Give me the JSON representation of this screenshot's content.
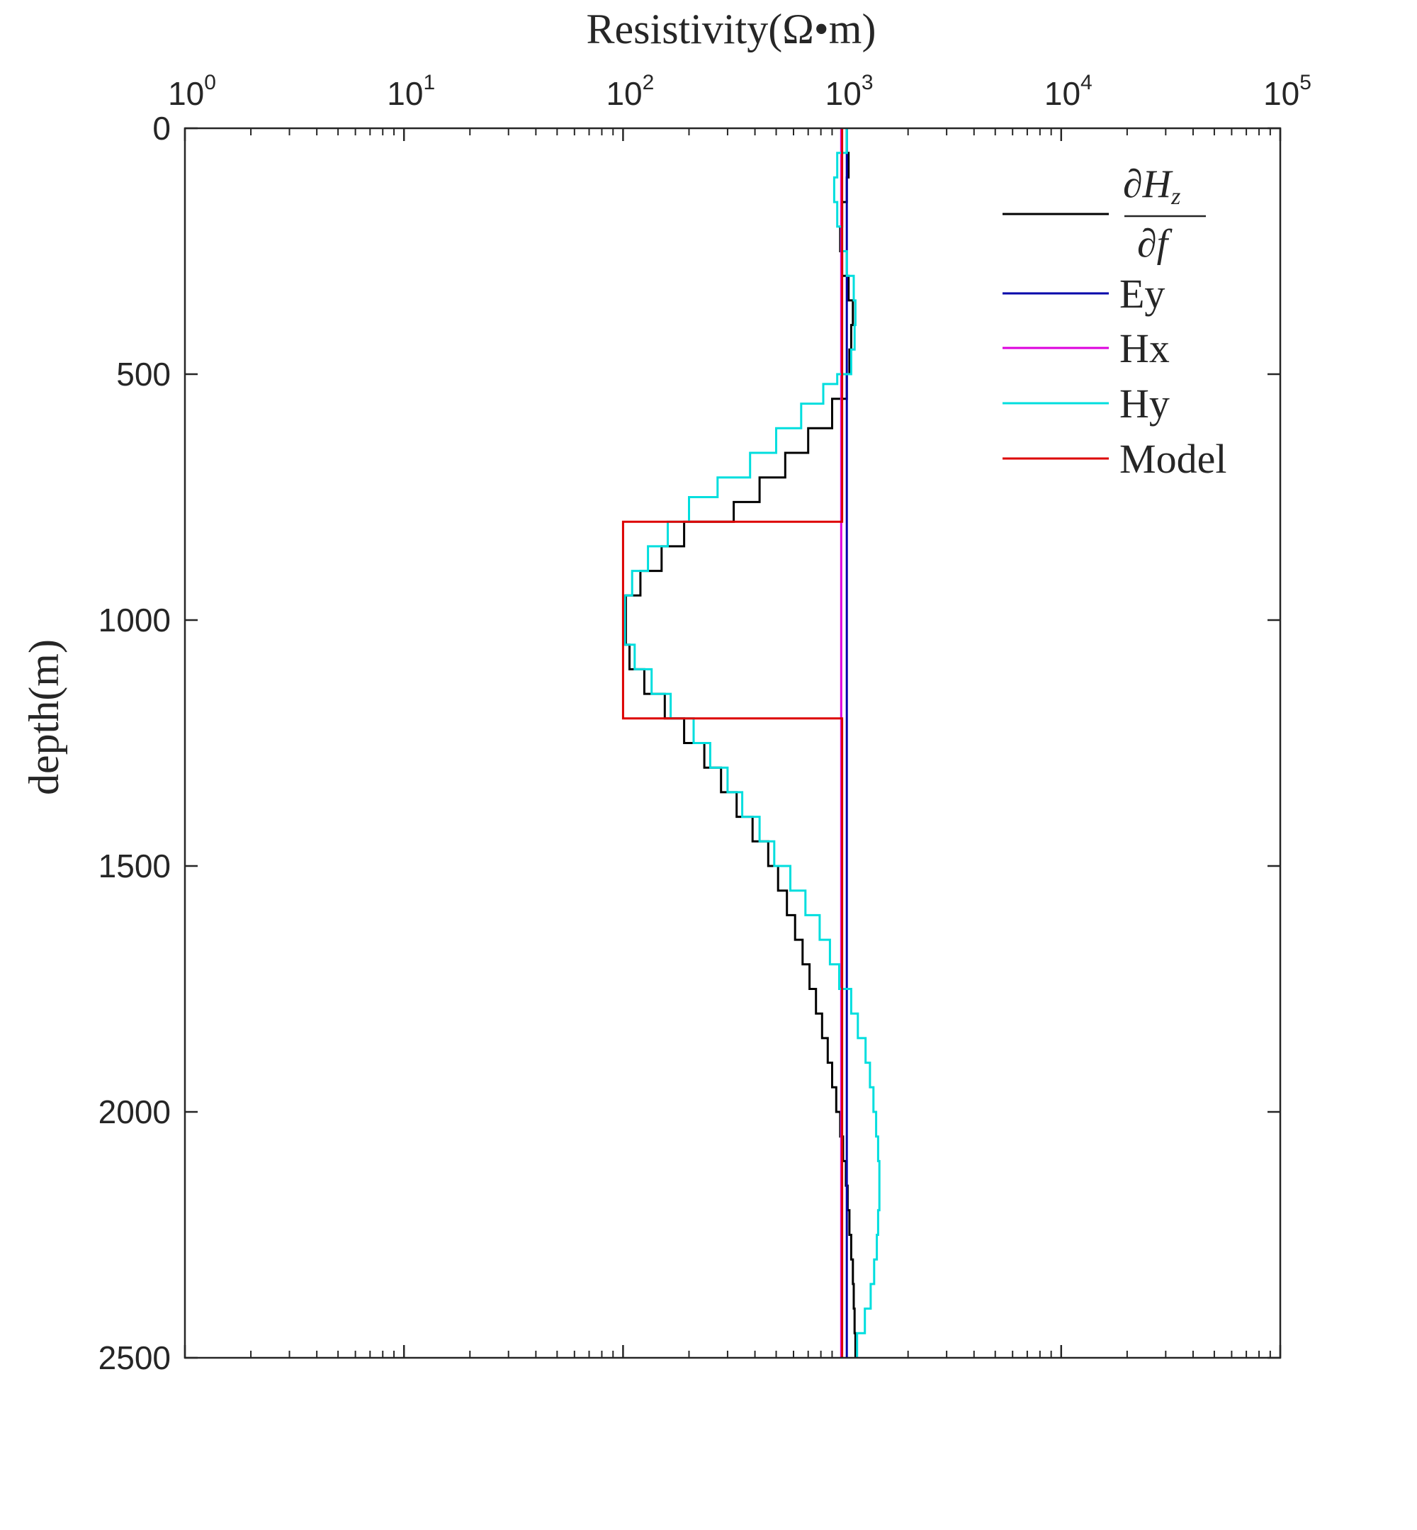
{
  "chart_data": {
    "type": "line",
    "xlabel": "Resistivity(Ω•m)",
    "ylabel": "depth(m)",
    "xscale": "log",
    "xlim": [
      1,
      100000
    ],
    "ylim": [
      0,
      2500
    ],
    "y_reversed": true,
    "x_axis_position": "top",
    "grid": false,
    "legend_position": "top-right",
    "x_ticks": [
      {
        "base": "10",
        "exp": "0",
        "value": 1
      },
      {
        "base": "10",
        "exp": "1",
        "value": 10
      },
      {
        "base": "10",
        "exp": "2",
        "value": 100
      },
      {
        "base": "10",
        "exp": "3",
        "value": 1000
      },
      {
        "base": "10",
        "exp": "4",
        "value": 10000
      },
      {
        "base": "10",
        "exp": "5",
        "value": 100000
      }
    ],
    "y_ticks": [
      "0",
      "500",
      "1000",
      "1500",
      "2000",
      "2500"
    ],
    "legend": {
      "dhz": {
        "numerator": "∂H",
        "numerator_sub": "z",
        "denominator": "∂f"
      },
      "ey": "Ey",
      "hx": "Hx",
      "hy": "Hy",
      "model": "Model"
    },
    "series": [
      {
        "key": "dhz",
        "color": "#000000",
        "points": [
          [
            1050,
            0
          ],
          [
            1050,
            50
          ],
          [
            1070,
            50
          ],
          [
            1070,
            100
          ],
          [
            1050,
            100
          ],
          [
            1050,
            150
          ],
          [
            1000,
            150
          ],
          [
            1000,
            200
          ],
          [
            980,
            200
          ],
          [
            980,
            250
          ],
          [
            1000,
            250
          ],
          [
            1000,
            300
          ],
          [
            1070,
            300
          ],
          [
            1070,
            350
          ],
          [
            1120,
            350
          ],
          [
            1120,
            400
          ],
          [
            1100,
            400
          ],
          [
            1100,
            450
          ],
          [
            1080,
            450
          ],
          [
            1080,
            500
          ],
          [
            1050,
            500
          ],
          [
            1050,
            550
          ],
          [
            900,
            550
          ],
          [
            900,
            610
          ],
          [
            700,
            610
          ],
          [
            700,
            660
          ],
          [
            550,
            660
          ],
          [
            550,
            710
          ],
          [
            420,
            710
          ],
          [
            420,
            760
          ],
          [
            320,
            760
          ],
          [
            320,
            800
          ],
          [
            190,
            800
          ],
          [
            190,
            850
          ],
          [
            150,
            850
          ],
          [
            150,
            900
          ],
          [
            120,
            900
          ],
          [
            120,
            950
          ],
          [
            103,
            950
          ],
          [
            103,
            1050
          ],
          [
            107,
            1050
          ],
          [
            107,
            1100
          ],
          [
            125,
            1100
          ],
          [
            125,
            1150
          ],
          [
            155,
            1150
          ],
          [
            155,
            1200
          ],
          [
            190,
            1200
          ],
          [
            190,
            1250
          ],
          [
            235,
            1250
          ],
          [
            235,
            1300
          ],
          [
            280,
            1300
          ],
          [
            280,
            1350
          ],
          [
            330,
            1350
          ],
          [
            330,
            1400
          ],
          [
            390,
            1400
          ],
          [
            390,
            1450
          ],
          [
            460,
            1450
          ],
          [
            460,
            1500
          ],
          [
            510,
            1500
          ],
          [
            510,
            1550
          ],
          [
            560,
            1550
          ],
          [
            560,
            1600
          ],
          [
            610,
            1600
          ],
          [
            610,
            1650
          ],
          [
            660,
            1650
          ],
          [
            660,
            1700
          ],
          [
            710,
            1700
          ],
          [
            710,
            1750
          ],
          [
            760,
            1750
          ],
          [
            760,
            1800
          ],
          [
            810,
            1800
          ],
          [
            810,
            1850
          ],
          [
            860,
            1850
          ],
          [
            860,
            1900
          ],
          [
            900,
            1900
          ],
          [
            900,
            1950
          ],
          [
            940,
            1950
          ],
          [
            940,
            2000
          ],
          [
            980,
            2000
          ],
          [
            980,
            2050
          ],
          [
            1010,
            2050
          ],
          [
            1010,
            2100
          ],
          [
            1040,
            2100
          ],
          [
            1040,
            2150
          ],
          [
            1060,
            2150
          ],
          [
            1060,
            2200
          ],
          [
            1080,
            2200
          ],
          [
            1080,
            2250
          ],
          [
            1100,
            2250
          ],
          [
            1100,
            2300
          ],
          [
            1120,
            2300
          ],
          [
            1120,
            2350
          ],
          [
            1130,
            2350
          ],
          [
            1130,
            2400
          ],
          [
            1140,
            2400
          ],
          [
            1140,
            2450
          ],
          [
            1150,
            2450
          ],
          [
            1150,
            2500
          ]
        ]
      },
      {
        "key": "ey",
        "color": "#0000aa",
        "points": [
          [
            1050,
            0
          ],
          [
            1050,
            2500
          ]
        ]
      },
      {
        "key": "hx",
        "color": "#dd00dd",
        "points": [
          [
            990,
            0
          ],
          [
            990,
            2500
          ]
        ]
      },
      {
        "key": "hy",
        "color": "#00dede",
        "points": [
          [
            1050,
            0
          ],
          [
            1050,
            50
          ],
          [
            950,
            50
          ],
          [
            950,
            100
          ],
          [
            920,
            100
          ],
          [
            920,
            150
          ],
          [
            950,
            150
          ],
          [
            950,
            200
          ],
          [
            1000,
            200
          ],
          [
            1000,
            250
          ],
          [
            1050,
            250
          ],
          [
            1050,
            300
          ],
          [
            1130,
            300
          ],
          [
            1130,
            350
          ],
          [
            1150,
            350
          ],
          [
            1150,
            400
          ],
          [
            1140,
            400
          ],
          [
            1140,
            450
          ],
          [
            1100,
            450
          ],
          [
            1100,
            500
          ],
          [
            950,
            500
          ],
          [
            950,
            520
          ],
          [
            820,
            520
          ],
          [
            820,
            560
          ],
          [
            650,
            560
          ],
          [
            650,
            610
          ],
          [
            500,
            610
          ],
          [
            500,
            660
          ],
          [
            380,
            660
          ],
          [
            380,
            710
          ],
          [
            270,
            710
          ],
          [
            270,
            750
          ],
          [
            200,
            750
          ],
          [
            200,
            800
          ],
          [
            160,
            800
          ],
          [
            160,
            850
          ],
          [
            130,
            850
          ],
          [
            130,
            900
          ],
          [
            110,
            900
          ],
          [
            110,
            950
          ],
          [
            102,
            950
          ],
          [
            102,
            1050
          ],
          [
            113,
            1050
          ],
          [
            113,
            1100
          ],
          [
            135,
            1100
          ],
          [
            135,
            1150
          ],
          [
            165,
            1150
          ],
          [
            165,
            1200
          ],
          [
            210,
            1200
          ],
          [
            210,
            1250
          ],
          [
            250,
            1250
          ],
          [
            250,
            1300
          ],
          [
            300,
            1300
          ],
          [
            300,
            1350
          ],
          [
            350,
            1350
          ],
          [
            350,
            1400
          ],
          [
            420,
            1400
          ],
          [
            420,
            1450
          ],
          [
            490,
            1450
          ],
          [
            490,
            1500
          ],
          [
            580,
            1500
          ],
          [
            580,
            1550
          ],
          [
            680,
            1550
          ],
          [
            680,
            1600
          ],
          [
            790,
            1600
          ],
          [
            790,
            1650
          ],
          [
            880,
            1650
          ],
          [
            880,
            1700
          ],
          [
            970,
            1700
          ],
          [
            970,
            1750
          ],
          [
            1100,
            1750
          ],
          [
            1100,
            1800
          ],
          [
            1180,
            1800
          ],
          [
            1180,
            1850
          ],
          [
            1280,
            1850
          ],
          [
            1280,
            1900
          ],
          [
            1340,
            1900
          ],
          [
            1340,
            1950
          ],
          [
            1390,
            1950
          ],
          [
            1390,
            2000
          ],
          [
            1430,
            2000
          ],
          [
            1430,
            2050
          ],
          [
            1460,
            2050
          ],
          [
            1460,
            2100
          ],
          [
            1480,
            2100
          ],
          [
            1480,
            2200
          ],
          [
            1460,
            2200
          ],
          [
            1460,
            2250
          ],
          [
            1440,
            2250
          ],
          [
            1440,
            2300
          ],
          [
            1400,
            2300
          ],
          [
            1400,
            2350
          ],
          [
            1350,
            2350
          ],
          [
            1350,
            2400
          ],
          [
            1270,
            2400
          ],
          [
            1270,
            2450
          ],
          [
            1170,
            2450
          ],
          [
            1170,
            2500
          ]
        ]
      },
      {
        "key": "model",
        "color": "#dd0000",
        "points": [
          [
            1000,
            0
          ],
          [
            1000,
            800
          ],
          [
            100,
            800
          ],
          [
            100,
            1200
          ],
          [
            1000,
            1200
          ],
          [
            1000,
            2500
          ]
        ]
      }
    ]
  }
}
